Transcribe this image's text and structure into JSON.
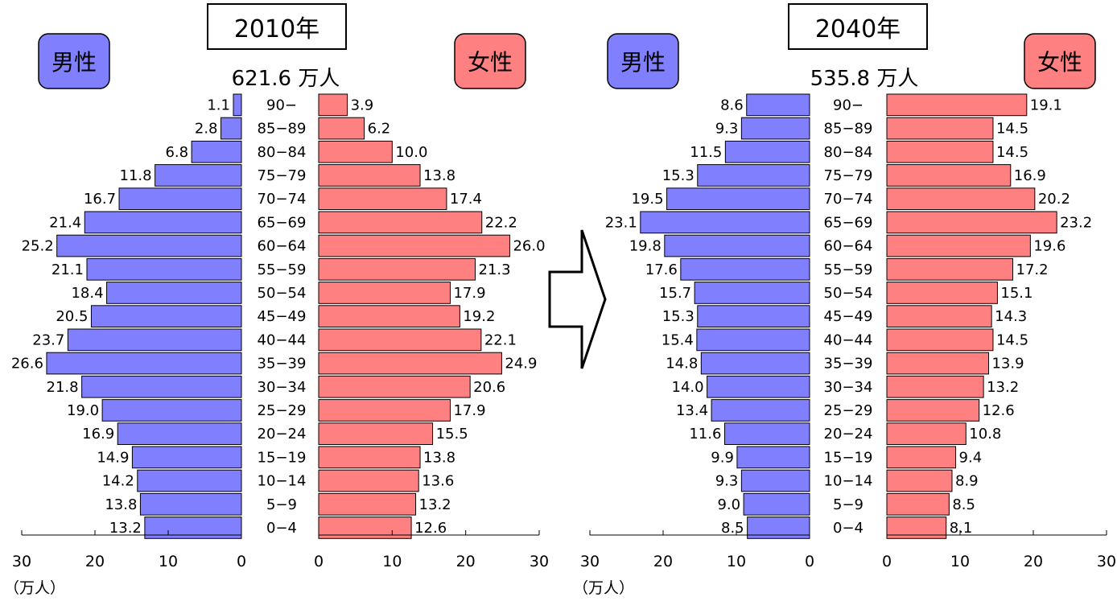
{
  "chart_data": [
    {
      "type": "bar",
      "title": "2010年",
      "total": "621.6 万人",
      "male_label": "男性",
      "female_label": "女性",
      "unit": "（万人）",
      "xlim": [
        0,
        30
      ],
      "ticks": [
        "30",
        "20",
        "10",
        "0"
      ],
      "ticks_right": [
        "0",
        "10",
        "20",
        "30"
      ],
      "categories": [
        "90−",
        "85−89",
        "80−84",
        "75−79",
        "70−74",
        "65−69",
        "60−64",
        "55−59",
        "50−54",
        "45−49",
        "40−44",
        "35−39",
        "30−34",
        "25−29",
        "20−24",
        "15−19",
        "10−14",
        "5−9",
        "0−4"
      ],
      "series": [
        {
          "name": "男性",
          "color": "#8080ff",
          "values": [
            1.1,
            2.8,
            6.8,
            11.8,
            16.7,
            21.4,
            25.2,
            21.1,
            18.4,
            20.5,
            23.7,
            26.6,
            21.8,
            19.0,
            16.9,
            14.9,
            14.2,
            13.8,
            13.2
          ],
          "labels": [
            "1.1",
            "2.8",
            "6.8",
            "11.8",
            "16.7",
            "21.4",
            "25.2",
            "21.1",
            "18.4",
            "20.5",
            "23.7",
            "26.6",
            "21.8",
            "19.0",
            "16.9",
            "14.9",
            "14.2",
            "13.8",
            "13.2"
          ]
        },
        {
          "name": "女性",
          "color": "#ff8080",
          "values": [
            3.9,
            6.2,
            10.0,
            13.8,
            17.4,
            22.2,
            26.0,
            21.3,
            17.9,
            19.2,
            22.1,
            24.9,
            20.6,
            17.9,
            15.5,
            13.8,
            13.6,
            13.2,
            12.6
          ],
          "labels": [
            "3.9",
            "6.2",
            "10.0",
            "13.8",
            "17.4",
            "22.2",
            "26.0",
            "21.3",
            "17.9",
            "19.2",
            "22.1",
            "24.9",
            "20.6",
            "17.9",
            "15.5",
            "13.8",
            "13.6",
            "13.2",
            "12.6"
          ]
        }
      ]
    },
    {
      "type": "bar",
      "title": "2040年",
      "total": "535.8 万人",
      "male_label": "男性",
      "female_label": "女性",
      "unit": "（万人）",
      "xlim": [
        0,
        30
      ],
      "ticks": [
        "30",
        "20",
        "10",
        "0"
      ],
      "ticks_right": [
        "0",
        "10",
        "20",
        "30"
      ],
      "categories": [
        "90−",
        "85−89",
        "80−84",
        "75−79",
        "70−74",
        "65−69",
        "60−64",
        "55−59",
        "50−54",
        "45−49",
        "40−44",
        "35−39",
        "30−34",
        "25−29",
        "20−24",
        "15−19",
        "10−14",
        "5−9",
        "0−4"
      ],
      "series": [
        {
          "name": "男性",
          "color": "#8080ff",
          "values": [
            8.6,
            9.3,
            11.5,
            15.3,
            19.5,
            23.1,
            19.8,
            17.6,
            15.7,
            15.3,
            15.4,
            14.8,
            14.0,
            13.4,
            11.6,
            9.9,
            9.3,
            9.0,
            8.5
          ],
          "labels": [
            "8.6",
            "9.3",
            "11.5",
            "15.3",
            "19.5",
            "23.1",
            "19.8",
            "17.6",
            "15.7",
            "15.3",
            "15.4",
            "14.8",
            "14.0",
            "13.4",
            "11.6",
            "9.9",
            "9.3",
            "9.0",
            "8.5"
          ]
        },
        {
          "name": "女性",
          "color": "#ff8080",
          "values": [
            19.1,
            14.5,
            14.5,
            16.9,
            20.2,
            23.2,
            19.6,
            17.2,
            15.1,
            14.3,
            14.5,
            13.9,
            13.2,
            12.6,
            10.8,
            9.4,
            8.9,
            8.5,
            8.1
          ],
          "labels": [
            "19.1",
            "14.5",
            "14.5",
            "16.9",
            "20.2",
            "23.2",
            "19.6",
            "17.2",
            "15.1",
            "14.3",
            "14.5",
            "13.9",
            "13.2",
            "12.6",
            "10.8",
            "9.4",
            "8.9",
            "8.5",
            "8.1"
          ]
        }
      ]
    }
  ]
}
